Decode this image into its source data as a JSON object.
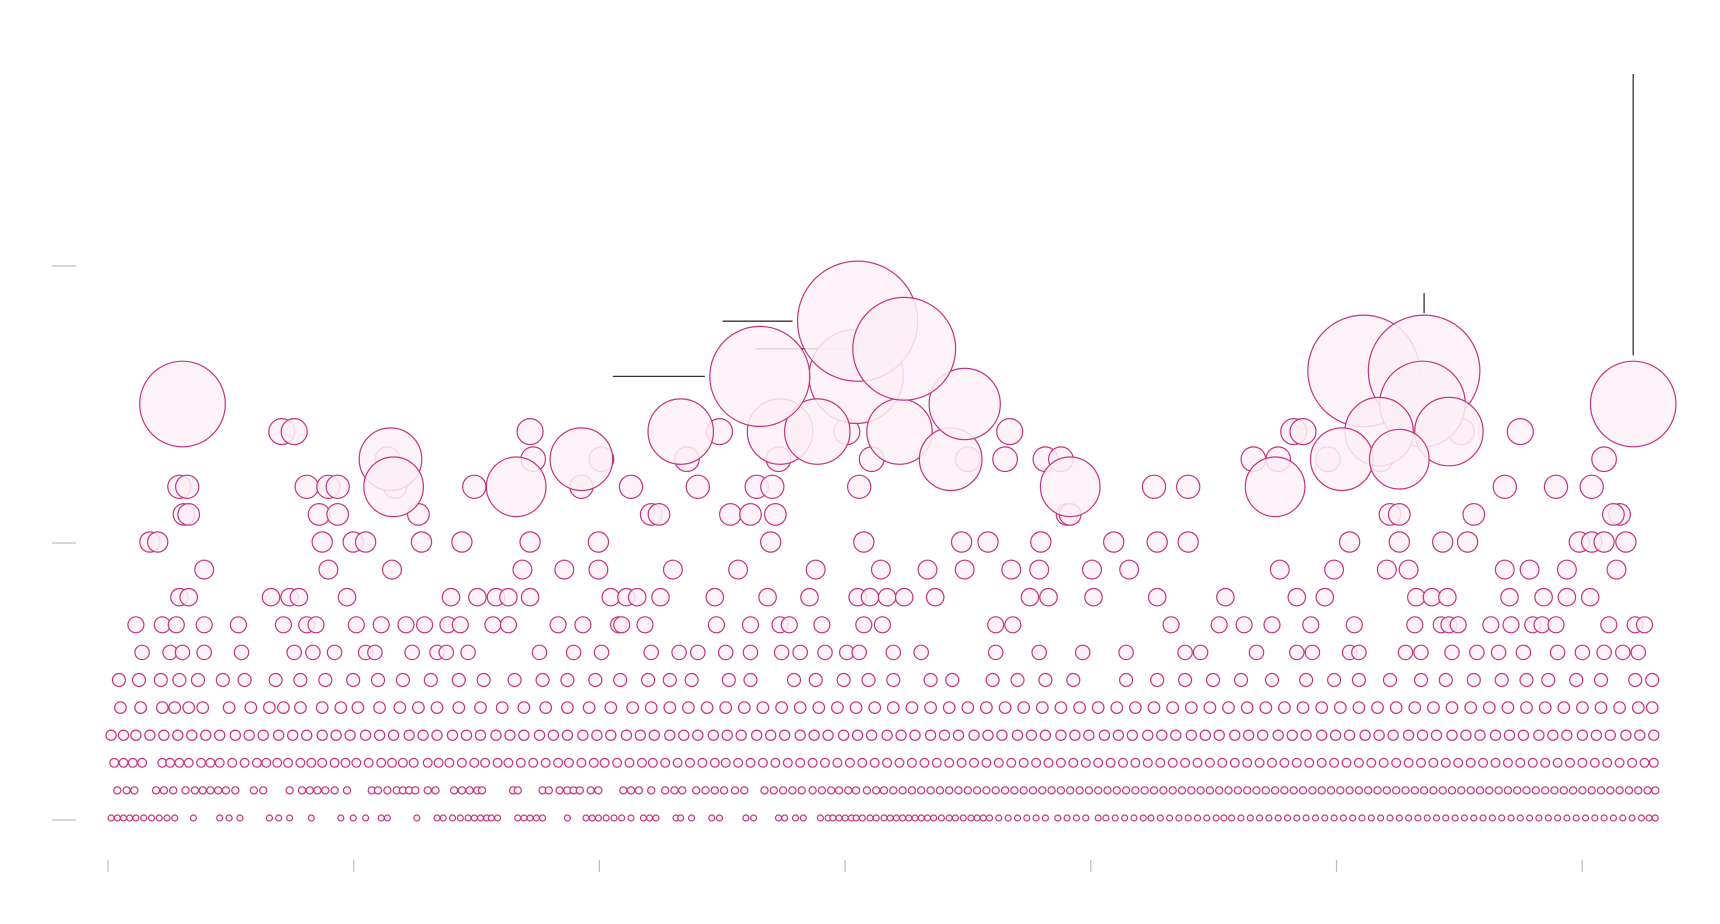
{
  "chart_data": {
    "type": "scatter",
    "title": "",
    "xlabel": "",
    "ylabel": "",
    "grid": false,
    "colors": {
      "stroke": "#c2357f",
      "fill": "#fcf0f6",
      "tick": "#bdbdbd",
      "leader": "#333333"
    },
    "y_ticks": 3,
    "x_ticks": 7,
    "rows": [
      {
        "level": 1,
        "xs": [
          0.002,
          0.006,
          0.01,
          0.014,
          0.018,
          0.023,
          0.028,
          0.033,
          0.038,
          0.043,
          0.055,
          0.072,
          0.078,
          0.085,
          0.104,
          0.11,
          0.117,
          0.131,
          0.15,
          0.158,
          0.166,
          0.176,
          0.18,
          0.199,
          0.212,
          0.216,
          0.222,
          0.227,
          0.232,
          0.236,
          0.24,
          0.244,
          0.247,
          0.251,
          0.264,
          0.268,
          0.272,
          0.276,
          0.28,
          0.296,
          0.308,
          0.312,
          0.316,
          0.321,
          0.326,
          0.331,
          0.337,
          0.345,
          0.349,
          0.353,
          0.366,
          0.369,
          0.376,
          0.389,
          0.394,
          0.411,
          0.416,
          0.432,
          0.436,
          0.443,
          0.448,
          0.459,
          0.464,
          0.467,
          0.471,
          0.475,
          0.479,
          0.482,
          0.486,
          0.491,
          0.495,
          0.5,
          0.504,
          0.508,
          0.512,
          0.516,
          0.52,
          0.524,
          0.528,
          0.532,
          0.537,
          0.542,
          0.546,
          0.551,
          0.556,
          0.56,
          0.564,
          0.568,
          0.574,
          0.58,
          0.586,
          0.592,
          0.598,
          0.604,
          0.612,
          0.618,
          0.624,
          0.63,
          0.638,
          0.643,
          0.649,
          0.655,
          0.661,
          0.667,
          0.672,
          0.678,
          0.684,
          0.69,
          0.696,
          0.702,
          0.708,
          0.714,
          0.719,
          0.724,
          0.73,
          0.736,
          0.742,
          0.748,
          0.754,
          0.76,
          0.766,
          0.772,
          0.778,
          0.784,
          0.79,
          0.796,
          0.802,
          0.808,
          0.814,
          0.82,
          0.826,
          0.832,
          0.838,
          0.844,
          0.85,
          0.856,
          0.862,
          0.868,
          0.874,
          0.88,
          0.886,
          0.892,
          0.898,
          0.904,
          0.91,
          0.916,
          0.922,
          0.928,
          0.934,
          0.94,
          0.946,
          0.952,
          0.958,
          0.964,
          0.97,
          0.976,
          0.982,
          0.988,
          0.993,
          0.997
        ]
      },
      {
        "level": 2,
        "xs": [
          0.006,
          0.012,
          0.017,
          0.031,
          0.036,
          0.042,
          0.05,
          0.056,
          0.061,
          0.066,
          0.071,
          0.076,
          0.082,
          0.094,
          0.1,
          0.117,
          0.125,
          0.13,
          0.135,
          0.14,
          0.146,
          0.154,
          0.17,
          0.174,
          0.18,
          0.186,
          0.19,
          0.194,
          0.198,
          0.206,
          0.211,
          0.223,
          0.228,
          0.233,
          0.238,
          0.241,
          0.261,
          0.264,
          0.28,
          0.284,
          0.291,
          0.296,
          0.3,
          0.304,
          0.311,
          0.316,
          0.332,
          0.337,
          0.342,
          0.35,
          0.359,
          0.365,
          0.37,
          0.379,
          0.385,
          0.391,
          0.397,
          0.404,
          0.41,
          0.423,
          0.429,
          0.435,
          0.441,
          0.447,
          0.454,
          0.46,
          0.466,
          0.471,
          0.477,
          0.482,
          0.489,
          0.495,
          0.5,
          0.506,
          0.512,
          0.518,
          0.524,
          0.53,
          0.536,
          0.542,
          0.548,
          0.554,
          0.56,
          0.566,
          0.572,
          0.578,
          0.584,
          0.59,
          0.596,
          0.602,
          0.608,
          0.614,
          0.62,
          0.626,
          0.632,
          0.638,
          0.644,
          0.65,
          0.656,
          0.662,
          0.668,
          0.674,
          0.68,
          0.686,
          0.692,
          0.698,
          0.704,
          0.71,
          0.716,
          0.722,
          0.728,
          0.734,
          0.74,
          0.746,
          0.752,
          0.758,
          0.764,
          0.77,
          0.776,
          0.782,
          0.788,
          0.794,
          0.8,
          0.806,
          0.812,
          0.818,
          0.824,
          0.83,
          0.836,
          0.842,
          0.848,
          0.854,
          0.86,
          0.866,
          0.872,
          0.878,
          0.884,
          0.89,
          0.896,
          0.902,
          0.908,
          0.914,
          0.92,
          0.926,
          0.932,
          0.938,
          0.944,
          0.95,
          0.956,
          0.962,
          0.968,
          0.974,
          0.98,
          0.986,
          0.992,
          0.997
        ]
      },
      {
        "level": 3,
        "xs": [
          0.004,
          0.01,
          0.016,
          0.022,
          0.035,
          0.04,
          0.046,
          0.052,
          0.06,
          0.066,
          0.072,
          0.08,
          0.088,
          0.096,
          0.102,
          0.109,
          0.116,
          0.124,
          0.131,
          0.138,
          0.146,
          0.153,
          0.16,
          0.168,
          0.176,
          0.183,
          0.19,
          0.197,
          0.206,
          0.213,
          0.22,
          0.228,
          0.236,
          0.243,
          0.251,
          0.258,
          0.266,
          0.274,
          0.282,
          0.29,
          0.297,
          0.305,
          0.313,
          0.32,
          0.328,
          0.336,
          0.344,
          0.351,
          0.359,
          0.367,
          0.375,
          0.383,
          0.391,
          0.398,
          0.406,
          0.414,
          0.422,
          0.43,
          0.438,
          0.446,
          0.454,
          0.462,
          0.47,
          0.478,
          0.486,
          0.494,
          0.502,
          0.51,
          0.518,
          0.526,
          0.534,
          0.542,
          0.55,
          0.558,
          0.566,
          0.574,
          0.582,
          0.59,
          0.598,
          0.606,
          0.614,
          0.622,
          0.63,
          0.638,
          0.646,
          0.654,
          0.662,
          0.67,
          0.678,
          0.686,
          0.694,
          0.702,
          0.71,
          0.718,
          0.726,
          0.734,
          0.742,
          0.75,
          0.758,
          0.766,
          0.774,
          0.782,
          0.79,
          0.798,
          0.806,
          0.814,
          0.822,
          0.83,
          0.838,
          0.846,
          0.854,
          0.862,
          0.87,
          0.878,
          0.886,
          0.894,
          0.902,
          0.91,
          0.918,
          0.926,
          0.934,
          0.942,
          0.95,
          0.958,
          0.966,
          0.974,
          0.982,
          0.99,
          0.996
        ]
      },
      {
        "level": 4,
        "xs": [
          0.002,
          0.01,
          0.018,
          0.027,
          0.036,
          0.045,
          0.054,
          0.063,
          0.072,
          0.082,
          0.091,
          0.1,
          0.11,
          0.119,
          0.128,
          0.138,
          0.147,
          0.156,
          0.166,
          0.175,
          0.184,
          0.194,
          0.203,
          0.212,
          0.222,
          0.231,
          0.24,
          0.25,
          0.259,
          0.268,
          0.278,
          0.287,
          0.296,
          0.306,
          0.315,
          0.324,
          0.334,
          0.343,
          0.352,
          0.362,
          0.371,
          0.38,
          0.39,
          0.399,
          0.408,
          0.418,
          0.427,
          0.436,
          0.446,
          0.455,
          0.464,
          0.474,
          0.483,
          0.492,
          0.502,
          0.511,
          0.52,
          0.53,
          0.539,
          0.548,
          0.558,
          0.567,
          0.576,
          0.586,
          0.595,
          0.604,
          0.614,
          0.623,
          0.632,
          0.642,
          0.651,
          0.66,
          0.67,
          0.679,
          0.688,
          0.698,
          0.707,
          0.716,
          0.726,
          0.735,
          0.744,
          0.754,
          0.763,
          0.772,
          0.782,
          0.791,
          0.8,
          0.81,
          0.819,
          0.828,
          0.838,
          0.847,
          0.856,
          0.866,
          0.875,
          0.884,
          0.894,
          0.903,
          0.912,
          0.922,
          0.931,
          0.94,
          0.95,
          0.959,
          0.968,
          0.978,
          0.987,
          0.996
        ]
      },
      {
        "level": 5,
        "xs": [
          0.008,
          0.021,
          0.035,
          0.043,
          0.052,
          0.061,
          0.078,
          0.092,
          0.104,
          0.113,
          0.124,
          0.138,
          0.15,
          0.161,
          0.175,
          0.188,
          0.2,
          0.212,
          0.226,
          0.24,
          0.254,
          0.268,
          0.282,
          0.296,
          0.31,
          0.324,
          0.338,
          0.35,
          0.362,
          0.374,
          0.386,
          0.398,
          0.41,
          0.422,
          0.434,
          0.446,
          0.458,
          0.47,
          0.482,
          0.494,
          0.506,
          0.518,
          0.53,
          0.542,
          0.554,
          0.566,
          0.578,
          0.59,
          0.602,
          0.614,
          0.626,
          0.638,
          0.65,
          0.662,
          0.674,
          0.686,
          0.698,
          0.71,
          0.722,
          0.734,
          0.746,
          0.758,
          0.77,
          0.782,
          0.794,
          0.806,
          0.818,
          0.83,
          0.842,
          0.854,
          0.866,
          0.878,
          0.89,
          0.902,
          0.914,
          0.926,
          0.938,
          0.95,
          0.962,
          0.974,
          0.986,
          0.995
        ]
      },
      {
        "level": 6,
        "xs": [
          0.007,
          0.02,
          0.034,
          0.046,
          0.058,
          0.074,
          0.088,
          0.108,
          0.124,
          0.14,
          0.158,
          0.174,
          0.19,
          0.208,
          0.226,
          0.242,
          0.262,
          0.28,
          0.296,
          0.314,
          0.33,
          0.348,
          0.362,
          0.376,
          0.4,
          0.414,
          0.442,
          0.456,
          0.474,
          0.49,
          0.506,
          0.53,
          0.544,
          0.57,
          0.586,
          0.604,
          0.622,
          0.656,
          0.676,
          0.694,
          0.712,
          0.73,
          0.75,
          0.772,
          0.79,
          0.806,
          0.826,
          0.846,
          0.862,
          0.88,
          0.898,
          0.914,
          0.928,
          0.946,
          0.962,
          0.984,
          0.995
        ]
      },
      {
        "level": 7,
        "xs": [
          0.022,
          0.04,
          0.048,
          0.062,
          0.086,
          0.12,
          0.132,
          0.146,
          0.166,
          0.172,
          0.196,
          0.212,
          0.218,
          0.232,
          0.278,
          0.3,
          0.318,
          0.35,
          0.368,
          0.38,
          0.398,
          0.414,
          0.434,
          0.446,
          0.462,
          0.476,
          0.484,
          0.506,
          0.524,
          0.572,
          0.6,
          0.628,
          0.656,
          0.694,
          0.704,
          0.74,
          0.766,
          0.776,
          0.8,
          0.806,
          0.836,
          0.846,
          0.866,
          0.882,
          0.896,
          0.912,
          0.934,
          0.95,
          0.964,
          0.976,
          0.986
        ]
      },
      {
        "level": 8,
        "xs": [
          0.018,
          0.035,
          0.044,
          0.062,
          0.084,
          0.113,
          0.128,
          0.134,
          0.16,
          0.176,
          0.192,
          0.204,
          0.219,
          0.227,
          0.248,
          0.258,
          0.29,
          0.306,
          0.329,
          0.331,
          0.346,
          0.392,
          0.414,
          0.433,
          0.439,
          0.46,
          0.487,
          0.499,
          0.572,
          0.583,
          0.685,
          0.716,
          0.732,
          0.75,
          0.775,
          0.803,
          0.842,
          0.859,
          0.864,
          0.87,
          0.891,
          0.904,
          0.918,
          0.924,
          0.933,
          0.967,
          0.984,
          0.99
        ]
      },
      {
        "level": 9,
        "xs": [
          0.046,
          0.052,
          0.105,
          0.117,
          0.123,
          0.154,
          0.221,
          0.238,
          0.25,
          0.258,
          0.272,
          0.324,
          0.334,
          0.341,
          0.356,
          0.391,
          0.425,
          0.452,
          0.483,
          0.491,
          0.502,
          0.513,
          0.533,
          0.594,
          0.606,
          0.635,
          0.676,
          0.72,
          0.766,
          0.784,
          0.843,
          0.853,
          0.863,
          0.903,
          0.925,
          0.94,
          0.955
        ]
      },
      {
        "level": 10,
        "xs": [
          0.062,
          0.142,
          0.183,
          0.267,
          0.294,
          0.316,
          0.364,
          0.406,
          0.456,
          0.498,
          0.528,
          0.552,
          0.582,
          0.6,
          0.634,
          0.658,
          0.755,
          0.79,
          0.824,
          0.838,
          0.9,
          0.916,
          0.94,
          0.972
        ]
      },
      {
        "level": 11,
        "xs": [
          0.027,
          0.032,
          0.138,
          0.158,
          0.166,
          0.202,
          0.228,
          0.272,
          0.316,
          0.427,
          0.487,
          0.55,
          0.567,
          0.601,
          0.648,
          0.676,
          0.696,
          0.8,
          0.832,
          0.86,
          0.876,
          0.948,
          0.956,
          0.964,
          0.978
        ]
      },
      {
        "level": 12,
        "xs": [
          0.049,
          0.052,
          0.136,
          0.148,
          0.2,
          0.35,
          0.355,
          0.401,
          0.414,
          0.43,
          0.618,
          0.62,
          0.826,
          0.832,
          0.88,
          0.974,
          0.97
        ]
      },
      {
        "level": 13,
        "xs": [
          0.046,
          0.051,
          0.128,
          0.142,
          0.148,
          0.185,
          0.236,
          0.305,
          0.337,
          0.38,
          0.418,
          0.428,
          0.484,
          0.674,
          0.696,
          0.9,
          0.933,
          0.956
        ]
      },
      {
        "level": 14,
        "xs": [
          0.18,
          0.274,
          0.318,
          0.373,
          0.432,
          0.492,
          0.554,
          0.578,
          0.604,
          0.614,
          0.738,
          0.754,
          0.786,
          0.82,
          0.964
        ]
      },
      {
        "level": 15,
        "xs": [
          0.112,
          0.12,
          0.272,
          0.394,
          0.476,
          0.581,
          0.764,
          0.77,
          0.842,
          0.872,
          0.91
        ]
      }
    ],
    "large": [
      {
        "x": 0.048,
        "level": 16,
        "size": 4
      },
      {
        "x": 0.182,
        "level": 14,
        "size": 2.4
      },
      {
        "x": 0.184,
        "level": 13,
        "size": 2.2
      },
      {
        "x": 0.263,
        "level": 13,
        "size": 2.2
      },
      {
        "x": 0.305,
        "level": 14,
        "size": 2.4
      },
      {
        "x": 0.369,
        "level": 15,
        "size": 2.6
      },
      {
        "x": 0.433,
        "level": 15,
        "size": 2.6
      },
      {
        "x": 0.482,
        "level": 17,
        "size": 4.6
      },
      {
        "x": 0.457,
        "level": 15,
        "size": 2.6
      },
      {
        "x": 0.51,
        "level": 15,
        "size": 2.6
      },
      {
        "x": 0.543,
        "level": 14,
        "size": 2.4
      },
      {
        "x": 0.552,
        "level": 16,
        "size": 3
      },
      {
        "x": 0.483,
        "level": 19,
        "size": 6.4,
        "leader": "left"
      },
      {
        "x": 0.513,
        "level": 18,
        "size": 5.2,
        "leader": "left"
      },
      {
        "x": 0.42,
        "level": 17,
        "size": 5,
        "leader": "left"
      },
      {
        "x": 0.809,
        "level": 17.2,
        "size": 5.8
      },
      {
        "x": 0.848,
        "level": 17.2,
        "size": 5.8,
        "leader": "up"
      },
      {
        "x": 0.847,
        "level": 16,
        "size": 4
      },
      {
        "x": 0.864,
        "level": 15,
        "size": 2.8
      },
      {
        "x": 0.819,
        "level": 15,
        "size": 2.8
      },
      {
        "x": 0.795,
        "level": 14,
        "size": 2.4
      },
      {
        "x": 0.832,
        "level": 14,
        "size": 2.2
      },
      {
        "x": 0.998,
        "level": 16,
        "size": 4,
        "leader": "upline"
      },
      {
        "x": 0.62,
        "level": 13,
        "size": 2.2
      },
      {
        "x": 0.752,
        "level": 13,
        "size": 2.2
      }
    ]
  }
}
